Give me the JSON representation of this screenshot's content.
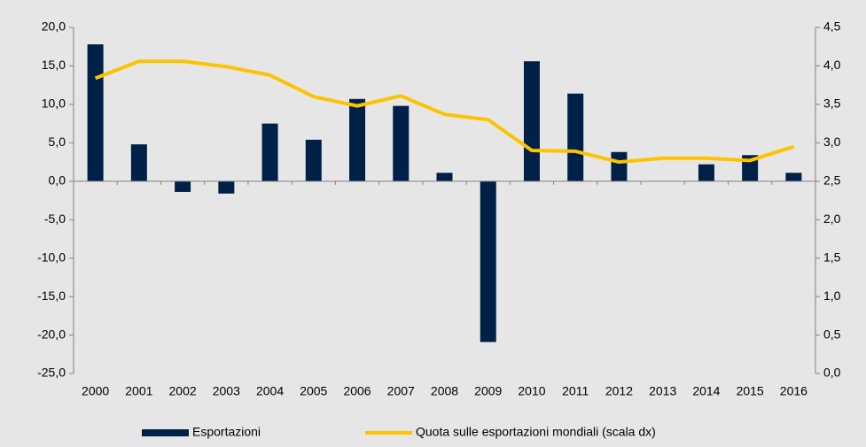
{
  "chart_data": {
    "type": "bar_line",
    "categories": [
      "2000",
      "2001",
      "2002",
      "2003",
      "2004",
      "2005",
      "2006",
      "2007",
      "2008",
      "2009",
      "2010",
      "2011",
      "2012",
      "2013",
      "2014",
      "2015",
      "2016"
    ],
    "series": [
      {
        "name": "Esportazioni",
        "color": "#002147",
        "type": "bar",
        "axis": "y",
        "values": [
          17.8,
          4.8,
          -1.4,
          -1.6,
          7.5,
          5.4,
          10.7,
          9.8,
          1.1,
          -20.9,
          15.6,
          11.4,
          3.8,
          0,
          2.2,
          3.4,
          1.1
        ]
      },
      {
        "name": "Quota sulle esportazioni mondiali (scala dx)",
        "color": "#fdc300",
        "type": "line",
        "axis": "y2",
        "values": [
          3.84,
          4.06,
          4.06,
          3.99,
          3.88,
          3.6,
          3.48,
          3.61,
          3.37,
          3.3,
          2.9,
          2.89,
          2.75,
          2.8,
          2.8,
          2.77,
          2.95
        ]
      }
    ],
    "ylim": [
      -25,
      20
    ],
    "yticks": [
      {
        "value": -25,
        "label": "-25,0"
      },
      {
        "value": -20,
        "label": "-20,0"
      },
      {
        "value": -15,
        "label": "-15,0"
      },
      {
        "value": -10,
        "label": "-10,0"
      },
      {
        "value": -5,
        "label": "-5,0"
      },
      {
        "value": 0,
        "label": "0,0"
      },
      {
        "value": 5,
        "label": "5,0"
      },
      {
        "value": 10,
        "label": "10,0"
      },
      {
        "value": 15,
        "label": "15,0"
      },
      {
        "value": 20,
        "label": "20,0"
      }
    ],
    "y2lim": [
      0,
      4.5
    ],
    "y2ticks": [
      {
        "value": 0,
        "label": "0,0"
      },
      {
        "value": 0.5,
        "label": "0,5"
      },
      {
        "value": 1,
        "label": "1,0"
      },
      {
        "value": 1.5,
        "label": "1,5"
      },
      {
        "value": 2,
        "label": "2,0"
      },
      {
        "value": 2.5,
        "label": "2,5"
      },
      {
        "value": 3,
        "label": "3,0"
      },
      {
        "value": 3.5,
        "label": "3,5"
      },
      {
        "value": 4,
        "label": "4,0"
      },
      {
        "value": 4.5,
        "label": "4,5"
      }
    ],
    "legend": "bottom"
  }
}
